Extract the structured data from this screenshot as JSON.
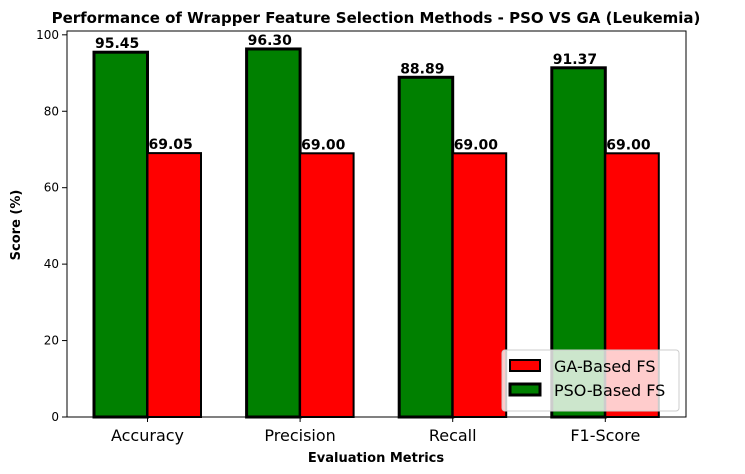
{
  "chart_data": {
    "type": "bar",
    "title": "Performance of Wrapper Feature Selection Methods - PSO VS GA (Leukemia)",
    "xlabel": "Evaluation Metrics",
    "ylabel": "Score (%)",
    "categories": [
      "Accuracy",
      "Precision",
      "Recall",
      "F1-Score"
    ],
    "series": [
      {
        "name": "PSO-Based FS",
        "color": "#008000",
        "values": [
          95.45,
          96.3,
          88.89,
          91.37
        ],
        "labels": [
          "95.45",
          "96.30",
          "88.89",
          "91.37"
        ]
      },
      {
        "name": "GA-Based FS",
        "color": "#ff0000",
        "values": [
          69.05,
          69.0,
          69.0,
          69.0
        ],
        "labels": [
          "69.05",
          "69.00",
          "69.00",
          "69.00"
        ]
      }
    ],
    "ylim": [
      0,
      101
    ],
    "yticks": [
      0,
      20,
      40,
      60,
      80,
      100
    ],
    "grid": false,
    "legend": {
      "placement": "lower-right",
      "order": [
        "GA-Based FS",
        "PSO-Based FS"
      ]
    }
  }
}
